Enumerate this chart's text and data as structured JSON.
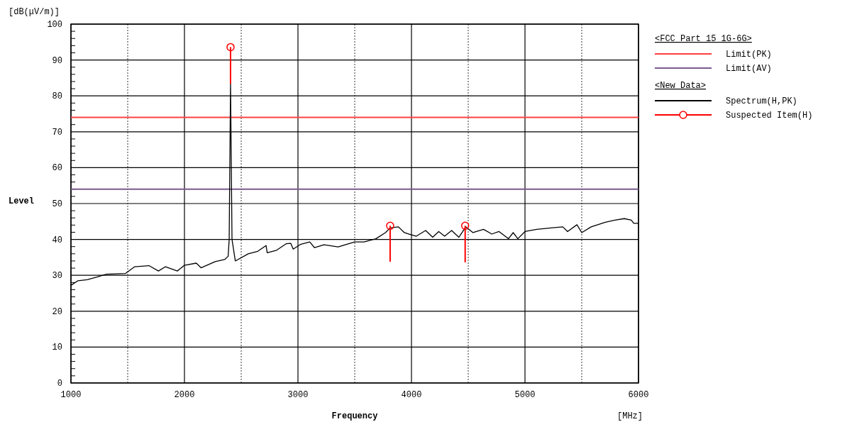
{
  "chart_data": {
    "type": "line",
    "xlabel": "Frequency",
    "ylabel": "Level",
    "annotations": [
      "<FCC_Part_15_1G-6G>",
      "<New_Data>",
      "[dB(μV/m)]",
      "[MHz]"
    ],
    "xlim": [
      1000,
      6000
    ],
    "xticks": [
      1000,
      {
        "value": 1500,
        "label": null
      },
      2000,
      {
        "value": 2500,
        "label": null
      },
      3000,
      {
        "value": 3500,
        "label": null
      },
      4000,
      {
        "value": 4500,
        "label": null
      },
      5000,
      {
        "value": 5500,
        "label": null
      },
      6000
    ],
    "ylim": [
      0,
      100
    ],
    "yticks": [
      0,
      10,
      20,
      30,
      40,
      50,
      60,
      70,
      80,
      90,
      100
    ],
    "grid": true,
    "legend": "right",
    "series": [
      {
        "name": "Limit(PK)",
        "color": "#ff4040",
        "x": [
          1000,
          6000
        ],
        "values": [
          74,
          74
        ]
      },
      {
        "name": "Limit(AV)",
        "color": "#7a5a8e",
        "x": [
          1000,
          6000
        ],
        "values": [
          54,
          54
        ]
      },
      {
        "name": "Spectrum(H,PK)",
        "color": "#000000",
        "x": [
          1000,
          1062,
          1144,
          1229,
          1312,
          1479,
          1562,
          1687,
          1771,
          1833,
          1937,
          2000,
          2104,
          2146,
          2271,
          2354,
          2385,
          2394,
          2406,
          2419,
          2448,
          2562,
          2646,
          2719,
          2729,
          2812,
          2896,
          2937,
          2958,
          3021,
          3104,
          3146,
          3229,
          3354,
          3500,
          3583,
          3687,
          3771,
          3812,
          3885,
          3937,
          3979,
          4042,
          4125,
          4187,
          4240,
          4292,
          4354,
          4417,
          4479,
          4542,
          4635,
          4708,
          4771,
          4854,
          4896,
          4937,
          5000,
          5104,
          5229,
          5333,
          5375,
          5458,
          5500,
          5583,
          5708,
          5792,
          5875,
          5937,
          5958,
          6000
        ],
        "values": [
          27.2,
          28.5,
          28.8,
          29.5,
          30.3,
          30.5,
          32.4,
          32.7,
          31.2,
          32.4,
          31.2,
          32.8,
          33.4,
          32.1,
          33.8,
          34.4,
          35.3,
          40,
          83.4,
          40,
          34.0,
          36.0,
          36.7,
          38.3,
          36.3,
          37.0,
          38.8,
          38.9,
          37.3,
          38.6,
          39.3,
          37.7,
          38.5,
          37.9,
          39.3,
          39.3,
          40.2,
          41.9,
          43.2,
          43.5,
          41.9,
          41.5,
          40.9,
          42.5,
          40.6,
          42.2,
          40.9,
          42.5,
          40.6,
          43.5,
          41.9,
          42.8,
          41.5,
          42.2,
          40.2,
          41.9,
          40.2,
          42.2,
          42.8,
          43.2,
          43.5,
          42.2,
          44.1,
          41.9,
          43.5,
          44.8,
          45.4,
          45.8,
          45.4,
          44.5,
          44.5
        ]
      },
      {
        "name": "Suspected Item(H)",
        "type": "scatter",
        "marker": "circle",
        "color": "#ff0000",
        "x": [
          2406,
          3812,
          4473
        ],
        "values": [
          93.6,
          43.8,
          43.8
        ],
        "errors": [
          [
            83.4,
            93.6
          ],
          [
            33.8,
            43.8
          ],
          [
            33.6,
            43.8
          ]
        ]
      }
    ]
  }
}
